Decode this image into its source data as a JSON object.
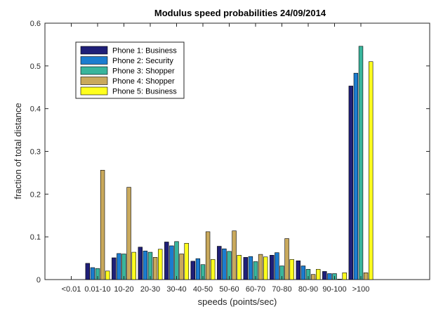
{
  "chart_data": {
    "type": "bar",
    "title": "Modulus speed probabilities 24/09/2014",
    "xlabel": "speeds (points/sec)",
    "ylabel": "fraction of total distance",
    "ylim": [
      0,
      0.6
    ],
    "yticks": [
      "0",
      "0.1",
      "0.2",
      "0.3",
      "0.4",
      "0.5",
      "0.6"
    ],
    "grid": false,
    "legend_position": "top-left",
    "categories": [
      "<0.01",
      "0.01-10",
      "10-20",
      "20-30",
      "30-40",
      "40-50",
      "50-60",
      "60-70",
      "70-80",
      "80-90",
      "90-100",
      ">100"
    ],
    "series": [
      {
        "name": "Phone 1: Business",
        "color": "#1f1f78",
        "values": [
          0,
          0.038,
          0.051,
          0.076,
          0.088,
          0.043,
          0.078,
          0.052,
          0.057,
          0.044,
          0.019,
          0.453
        ]
      },
      {
        "name": "Phone 2: Security",
        "color": "#1b7ccf",
        "values": [
          0,
          0.028,
          0.061,
          0.067,
          0.079,
          0.049,
          0.072,
          0.054,
          0.063,
          0.032,
          0.014,
          0.483
        ]
      },
      {
        "name": "Phone 3: Shopper",
        "color": "#39b59c",
        "values": [
          0,
          0.026,
          0.06,
          0.064,
          0.089,
          0.035,
          0.066,
          0.042,
          0.032,
          0.024,
          0.014,
          0.546
        ]
      },
      {
        "name": "Phone 4: Shopper",
        "color": "#c9a95c",
        "values": [
          0,
          0.256,
          0.216,
          0.052,
          0.06,
          0.112,
          0.114,
          0.059,
          0.096,
          0.012,
          0.001,
          0.016
        ]
      },
      {
        "name": "Phone 5: Business",
        "color": "#ffff1e",
        "values": [
          0,
          0.02,
          0.064,
          0.071,
          0.085,
          0.047,
          0.057,
          0.053,
          0.047,
          0.024,
          0.016,
          0.51
        ]
      }
    ]
  }
}
